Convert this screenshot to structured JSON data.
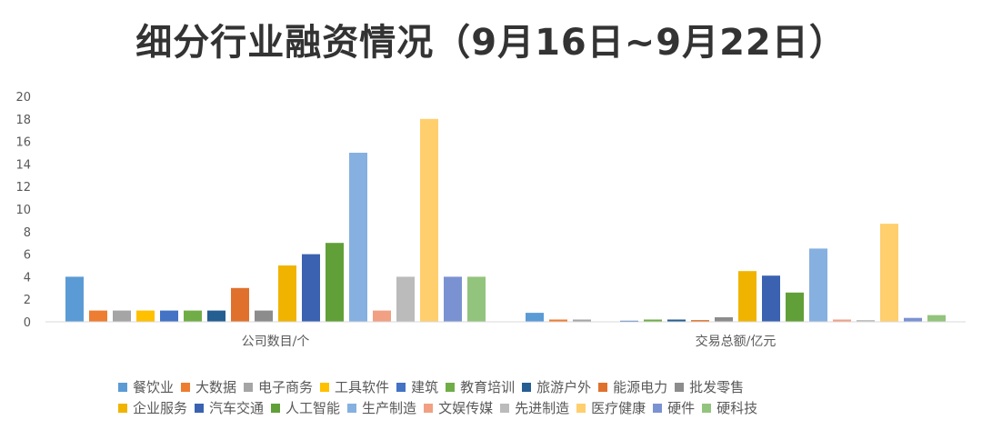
{
  "chart_data": {
    "type": "bar",
    "title": "细分行业融资情况（9月16日~9月22日）",
    "categories": [
      "公司数目/个",
      "交易总额/亿元"
    ],
    "ylim": [
      0,
      20
    ],
    "yticks": [
      0,
      2,
      4,
      6,
      8,
      10,
      12,
      14,
      16,
      18,
      20
    ],
    "grid": false,
    "legend_position": "bottom",
    "series": [
      {
        "name": "餐饮业",
        "color": "#5B9BD5",
        "values": [
          4,
          0.8
        ]
      },
      {
        "name": "大数据",
        "color": "#ED7D31",
        "values": [
          1,
          0.2
        ]
      },
      {
        "name": "电子商务",
        "color": "#A5A5A5",
        "values": [
          1,
          0.2
        ]
      },
      {
        "name": "工具软件",
        "color": "#FFC000",
        "values": [
          1,
          0
        ]
      },
      {
        "name": "建筑",
        "color": "#4472C4",
        "values": [
          1,
          0.1
        ]
      },
      {
        "name": "教育培训",
        "color": "#70AD47",
        "values": [
          1,
          0.2
        ]
      },
      {
        "name": "旅游户外",
        "color": "#255E91",
        "values": [
          1,
          0.2
        ]
      },
      {
        "name": "能源电力",
        "color": "#E0712C",
        "values": [
          3,
          0.15
        ]
      },
      {
        "name": "批发零售",
        "color": "#8C8C8C",
        "values": [
          1,
          0.4
        ]
      },
      {
        "name": "企业服务",
        "color": "#F0B400",
        "values": [
          5,
          4.5
        ]
      },
      {
        "name": "汽车交通",
        "color": "#3A62B0",
        "values": [
          6,
          4.1
        ]
      },
      {
        "name": "人工智能",
        "color": "#61A038",
        "values": [
          7,
          2.6
        ]
      },
      {
        "name": "生产制造",
        "color": "#86B0E0",
        "values": [
          15,
          6.5
        ]
      },
      {
        "name": "文娱传媒",
        "color": "#F1A083",
        "values": [
          1,
          0.2
        ]
      },
      {
        "name": "先进制造",
        "color": "#BBBBBB",
        "values": [
          4,
          0.15
        ]
      },
      {
        "name": "医疗健康",
        "color": "#FFCF6E",
        "values": [
          18,
          8.7
        ]
      },
      {
        "name": "硬件",
        "color": "#7B92D2",
        "values": [
          4,
          0.35
        ]
      },
      {
        "name": "硬科技",
        "color": "#93C47D",
        "values": [
          4,
          0.6
        ]
      }
    ]
  }
}
